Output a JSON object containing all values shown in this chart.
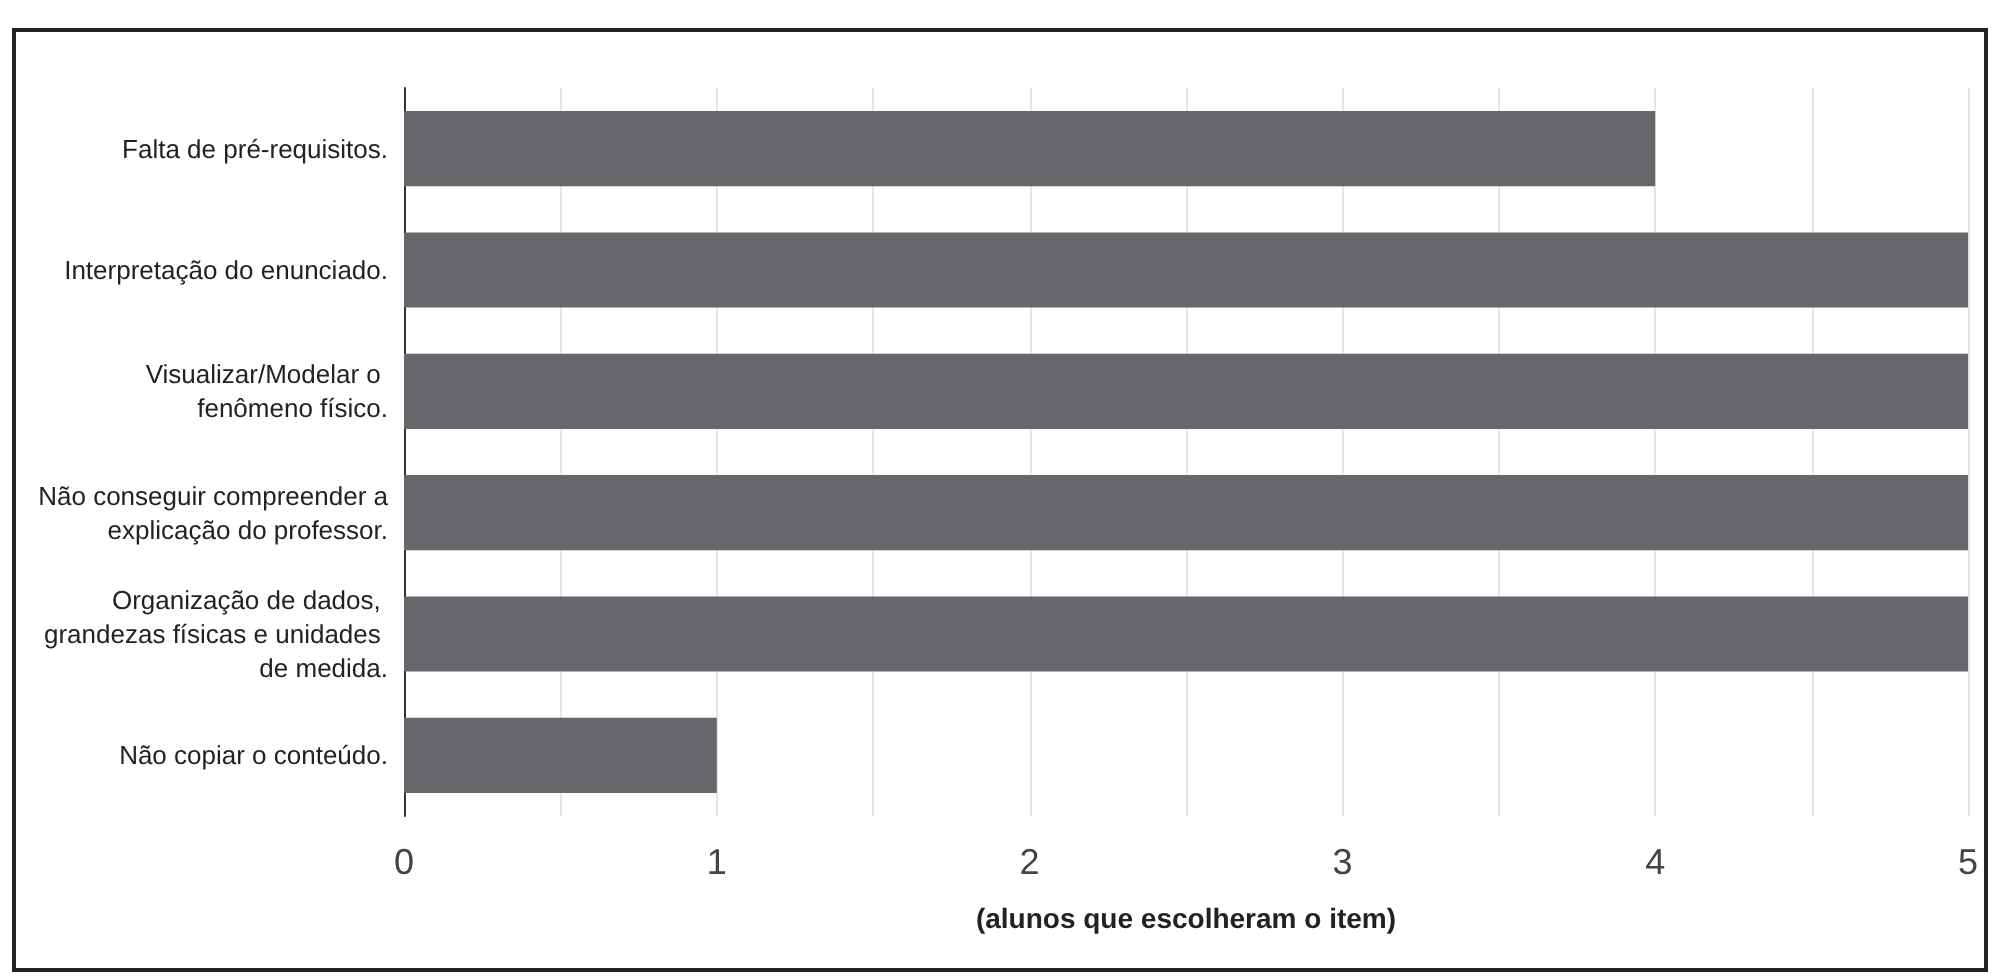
{
  "chart_data": {
    "type": "bar",
    "orientation": "horizontal",
    "xlabel": "(alunos que escolheram o item)",
    "categories": [
      "Falta de pré-requisitos.",
      "Interpretação do enunciado.",
      "Visualizar/Modelar o fenômeno físico.",
      "Não conseguir compreender a explicação do professor.",
      "Organização de dados, grandezas físicas e unidades de medida.",
      "Não copiar o conteúdo."
    ],
    "values": [
      4,
      5,
      5,
      5,
      5,
      1
    ],
    "color": "#67676b",
    "xlim": [
      0,
      5
    ],
    "xticks": [
      0,
      {
        "value": 0.5,
        "label": null
      },
      1,
      {
        "value": 1.5,
        "label": null
      },
      2,
      {
        "value": 2.5,
        "label": null
      },
      3,
      {
        "value": 3.5,
        "label": null
      },
      4,
      {
        "value": 4.5,
        "label": null
      },
      5
    ],
    "grid": "x"
  }
}
